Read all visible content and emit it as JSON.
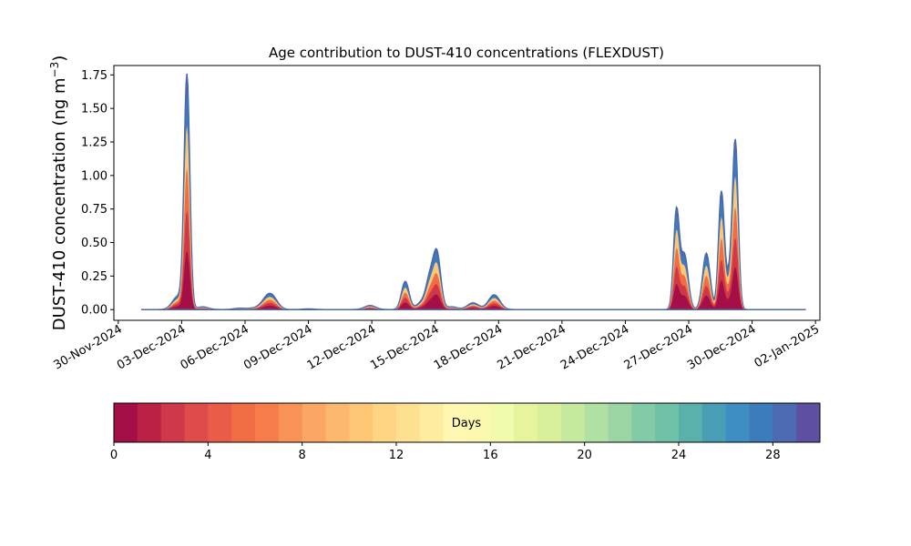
{
  "chart_data": {
    "type": "area",
    "title": "Age contribution to DUST-410 concentrations (FLEXDUST)",
    "ylabel_main": "DUST-410 concentration (ng m",
    "ylabel_sup": "−3",
    "ylabel_close": ")",
    "xlabel": "",
    "ylim": [
      -0.08,
      1.82
    ],
    "xlim": [
      "2024-11-29T19:00",
      "2025-01-02T05:00"
    ],
    "yticks": [
      0.0,
      0.25,
      0.5,
      0.75,
      1.0,
      1.25,
      1.5,
      1.75
    ],
    "ytick_labels": [
      "0.00",
      "0.25",
      "0.50",
      "0.75",
      "1.00",
      "1.25",
      "1.50",
      "1.75"
    ],
    "xticks": [
      "2024-11-30",
      "2024-12-03",
      "2024-12-06",
      "2024-12-09",
      "2024-12-12",
      "2024-12-15",
      "2024-12-18",
      "2024-12-21",
      "2024-12-24",
      "2024-12-27",
      "2024-12-30",
      "2025-01-02"
    ],
    "xtick_labels": [
      "30-Nov-2024",
      "03-Dec-2024",
      "06-Dec-2024",
      "09-Dec-2024",
      "12-Dec-2024",
      "15-Dec-2024",
      "18-Dec-2024",
      "21-Dec-2024",
      "24-Dec-2024",
      "27-Dec-2024",
      "30-Dec-2024",
      "02-Jan-2025"
    ],
    "grid": false,
    "legend": "none",
    "data_start": "2024-12-01T02:00",
    "data_end": "2025-01-01T13:00",
    "total_peaks": [
      {
        "x": "2024-12-02T20:00",
        "y": 0.1
      },
      {
        "x": "2024-12-03T06:00",
        "y": 1.73
      },
      {
        "x": "2024-12-04T00:00",
        "y": 0.02
      },
      {
        "x": "2024-12-05T18:00",
        "y": 0.01
      },
      {
        "x": "2024-12-06T10:00",
        "y": 0.01
      },
      {
        "x": "2024-12-07T00:00",
        "y": 0.06
      },
      {
        "x": "2024-12-07T07:00",
        "y": 0.08
      },
      {
        "x": "2024-12-09T00:00",
        "y": 0.005
      },
      {
        "x": "2024-12-11T22:00",
        "y": 0.03
      },
      {
        "x": "2024-12-13T14:00",
        "y": 0.21
      },
      {
        "x": "2024-12-14T10:00",
        "y": 0.06
      },
      {
        "x": "2024-12-14T18:00",
        "y": 0.2
      },
      {
        "x": "2024-12-15T02:00",
        "y": 0.41
      },
      {
        "x": "2024-12-15T19:00",
        "y": 0.02
      },
      {
        "x": "2024-12-16T19:00",
        "y": 0.05
      },
      {
        "x": "2024-12-17T19:00",
        "y": 0.11
      },
      {
        "x": "2024-12-26T10:00",
        "y": 0.72
      },
      {
        "x": "2024-12-26T19:00",
        "y": 0.41
      },
      {
        "x": "2024-12-27T20:00",
        "y": 0.42
      },
      {
        "x": "2024-12-28T13:00",
        "y": 0.86
      },
      {
        "x": "2024-12-28T22:00",
        "y": 0.24
      },
      {
        "x": "2024-12-29T05:00",
        "y": 1.21
      }
    ],
    "colorbar": {
      "label": "Days",
      "vmin": 0,
      "vmax": 30,
      "ticks": [
        0,
        4,
        8,
        12,
        16,
        20,
        24,
        28
      ],
      "tick_labels": [
        "0",
        "4",
        "8",
        "12",
        "16",
        "20",
        "24",
        "28"
      ],
      "colors": [
        "#a50f47",
        "#bb2145",
        "#cf3848",
        "#df4b4b",
        "#e95c48",
        "#f16d43",
        "#f67c4a",
        "#f89257",
        "#fba664",
        "#fcb86e",
        "#fdc775",
        "#fed683",
        "#fee190",
        "#feeda0",
        "#fff7b2",
        "#fbf9b0",
        "#f2faad",
        "#e6f59d",
        "#d8ef9c",
        "#c6e9a0",
        "#b1e0a3",
        "#9bd5a4",
        "#82cba6",
        "#6fc1a7",
        "#5ab0ab",
        "#479eb5",
        "#3e8ec3",
        "#3d7cbb",
        "#4d69b2",
        "#5e4fa2"
      ]
    }
  }
}
